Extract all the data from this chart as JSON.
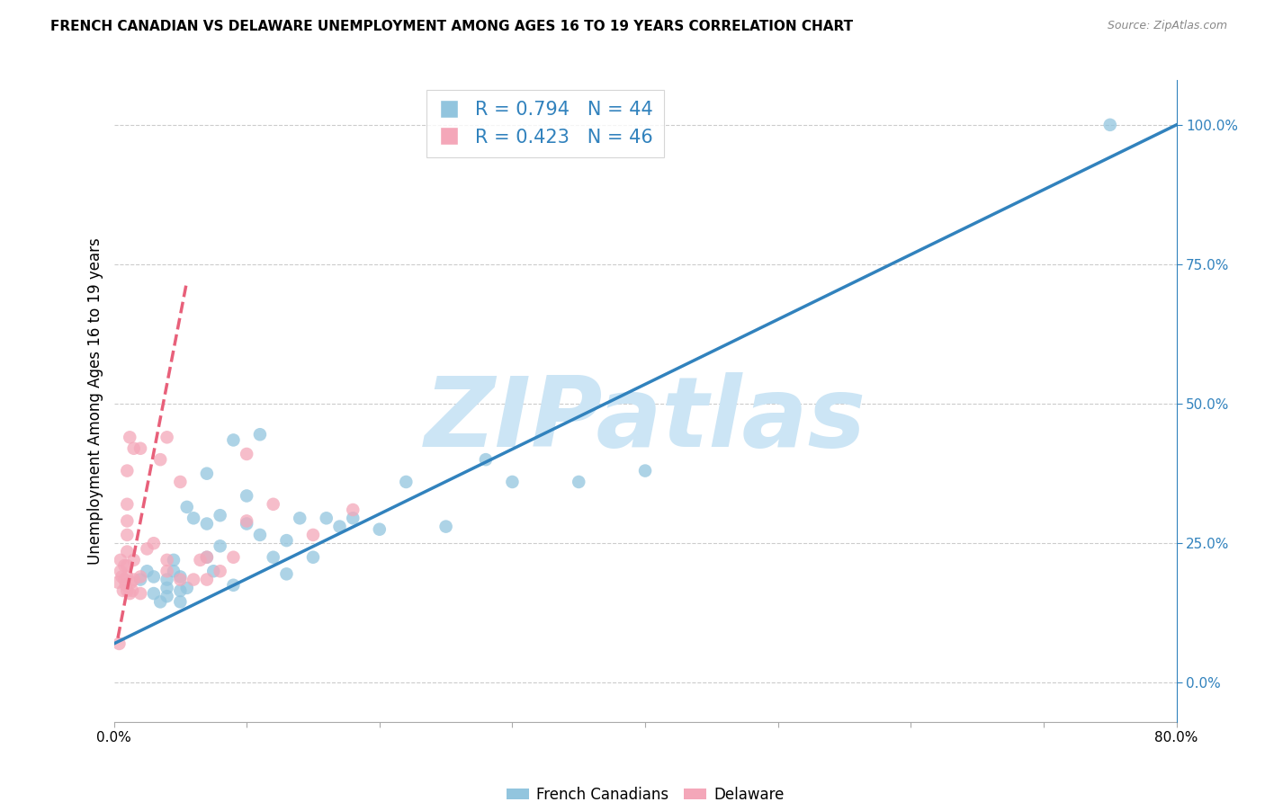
{
  "title": "FRENCH CANADIAN VS DELAWARE UNEMPLOYMENT AMONG AGES 16 TO 19 YEARS CORRELATION CHART",
  "source": "Source: ZipAtlas.com",
  "ylabel": "Unemployment Among Ages 16 to 19 years",
  "xlim": [
    0.0,
    0.8
  ],
  "ylim": [
    -0.07,
    1.08
  ],
  "yticks": [
    0.0,
    0.25,
    0.5,
    0.75,
    1.0
  ],
  "ytick_labels": [
    "0.0%",
    "25.0%",
    "50.0%",
    "75.0%",
    "100.0%"
  ],
  "blue_color": "#92c5de",
  "pink_color": "#f4a7b9",
  "blue_line_color": "#3182bd",
  "pink_line_color": "#e8607a",
  "legend_text_color": "#3182bd",
  "watermark": "ZIPatlas",
  "watermark_color": "#cce5f5",
  "background_color": "#ffffff",
  "grid_color": "#cccccc",
  "blue_scatter_x": [
    0.02,
    0.025,
    0.03,
    0.03,
    0.035,
    0.04,
    0.04,
    0.04,
    0.045,
    0.045,
    0.05,
    0.05,
    0.05,
    0.055,
    0.055,
    0.06,
    0.07,
    0.07,
    0.07,
    0.075,
    0.08,
    0.08,
    0.09,
    0.09,
    0.1,
    0.1,
    0.11,
    0.11,
    0.12,
    0.13,
    0.13,
    0.14,
    0.15,
    0.16,
    0.17,
    0.18,
    0.2,
    0.22,
    0.25,
    0.28,
    0.3,
    0.35,
    0.4,
    0.75
  ],
  "blue_scatter_y": [
    0.185,
    0.2,
    0.16,
    0.19,
    0.145,
    0.155,
    0.17,
    0.185,
    0.2,
    0.22,
    0.145,
    0.165,
    0.19,
    0.17,
    0.315,
    0.295,
    0.225,
    0.285,
    0.375,
    0.2,
    0.245,
    0.3,
    0.175,
    0.435,
    0.285,
    0.335,
    0.265,
    0.445,
    0.225,
    0.255,
    0.195,
    0.295,
    0.225,
    0.295,
    0.28,
    0.295,
    0.275,
    0.36,
    0.28,
    0.4,
    0.36,
    0.36,
    0.38,
    1.0
  ],
  "pink_scatter_x": [
    0.003,
    0.004,
    0.005,
    0.005,
    0.006,
    0.007,
    0.008,
    0.008,
    0.009,
    0.01,
    0.01,
    0.01,
    0.01,
    0.01,
    0.01,
    0.01,
    0.01,
    0.012,
    0.012,
    0.013,
    0.014,
    0.015,
    0.015,
    0.015,
    0.02,
    0.02,
    0.02,
    0.025,
    0.03,
    0.035,
    0.04,
    0.04,
    0.04,
    0.05,
    0.05,
    0.06,
    0.065,
    0.07,
    0.07,
    0.08,
    0.09,
    0.1,
    0.1,
    0.12,
    0.15,
    0.18
  ],
  "pink_scatter_y": [
    0.18,
    0.07,
    0.2,
    0.22,
    0.19,
    0.165,
    0.185,
    0.21,
    0.175,
    0.165,
    0.19,
    0.21,
    0.235,
    0.265,
    0.29,
    0.32,
    0.38,
    0.44,
    0.16,
    0.18,
    0.165,
    0.185,
    0.22,
    0.42,
    0.16,
    0.19,
    0.42,
    0.24,
    0.25,
    0.4,
    0.2,
    0.22,
    0.44,
    0.185,
    0.36,
    0.185,
    0.22,
    0.185,
    0.225,
    0.2,
    0.225,
    0.29,
    0.41,
    0.32,
    0.265,
    0.31
  ],
  "blue_line_x": [
    0.0,
    0.8
  ],
  "blue_line_y": [
    0.07,
    1.0
  ],
  "pink_line_x": [
    0.003,
    0.055
  ],
  "pink_line_y": [
    0.08,
    0.72
  ],
  "title_fontsize": 11,
  "axis_label_fontsize": 12,
  "tick_fontsize": 11,
  "legend_fontsize": 15,
  "legend_R_blue": "R = 0.794",
  "legend_N_blue": "N = 44",
  "legend_R_pink": "R = 0.423",
  "legend_N_pink": "N = 46",
  "bottom_legend_french": "French Canadians",
  "bottom_legend_delaware": "Delaware"
}
